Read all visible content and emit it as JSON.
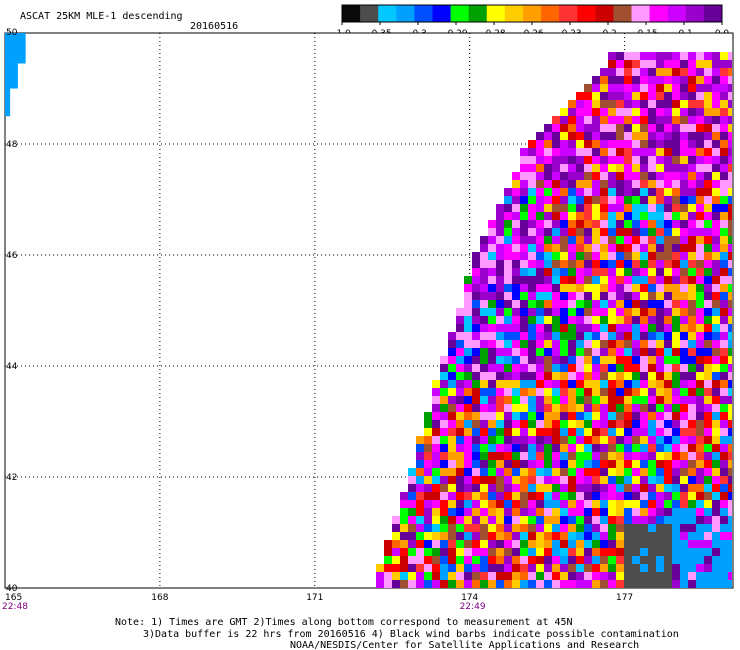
{
  "title": {
    "main": "ASCAT 25KM MLE-1 descending",
    "date": "20160516"
  },
  "colorbar": {
    "labels": [
      "-1.0",
      "-0.35",
      "-0.3",
      "-0.29",
      "-0.28",
      "-0.26",
      "-0.23",
      "-0.2",
      "-0.15",
      "-0.1",
      "0.0"
    ],
    "colors": [
      "#0a0a0a",
      "#4d4d4d",
      "#00c8ff",
      "#00a0ff",
      "#0050ff",
      "#0000ff",
      "#00ff00",
      "#00a000",
      "#ffff00",
      "#ffcc00",
      "#ffa000",
      "#ff6600",
      "#ff3333",
      "#ff0000",
      "#cc0000",
      "#a05030",
      "#ff99ff",
      "#ff00ff",
      "#cc00ff",
      "#9900cc",
      "#660099"
    ]
  },
  "notes": {
    "line1": "Note: 1) Times are GMT 2)Times along bottom correspond to measurement at 45N",
    "line2": "3)Data buffer is 22 hrs from 20160516 4) Black wind barbs indicate possible contamination",
    "line3": "NOAA/NESDIS/Center for Satellite Applications and Research"
  },
  "chart_data": {
    "type": "heatmap",
    "title": "ASCAT 25KM MLE-1 descending 20160516",
    "xlabel": "",
    "ylabel": "",
    "x_ticks": [
      165,
      168,
      171,
      174,
      177
    ],
    "y_ticks": [
      40,
      42,
      44,
      46,
      48,
      50
    ],
    "xlim": [
      165,
      179.1
    ],
    "ylim": [
      40,
      50
    ],
    "grid": true,
    "time_labels": [
      {
        "lon": 165,
        "text": "22:48"
      },
      {
        "lon": 174,
        "text": "22:49"
      }
    ],
    "swath_edges": [
      [
        40,
        172.2
      ],
      [
        42,
        172.9
      ],
      [
        44,
        173.5
      ],
      [
        46,
        174.2
      ],
      [
        48,
        175.2
      ],
      [
        49,
        176.3
      ],
      [
        50,
        177.2
      ]
    ],
    "value_scale": [
      -1.0,
      -0.35,
      -0.3,
      -0.29,
      -0.28,
      -0.26,
      -0.23,
      -0.2,
      -0.15,
      -0.1,
      0.0
    ],
    "colors": [
      "#0a0a0a",
      "#4d4d4d",
      "#00c8ff",
      "#00a0ff",
      "#0050ff",
      "#0000ff",
      "#00ff00",
      "#00a000",
      "#ffff00",
      "#ffcc00",
      "#ffa000",
      "#ff6600",
      "#ff3333",
      "#ff0000",
      "#cc0000",
      "#a05030",
      "#ff99ff",
      "#ff00ff",
      "#cc00ff",
      "#9900cc",
      "#660099"
    ],
    "left_edge_data": [
      {
        "lat_from": 49.45,
        "lat_to": 50,
        "lon_from": 165,
        "lon_to": 165.4,
        "color": "#00a0ff"
      },
      {
        "lat_from": 49.0,
        "lat_to": 49.45,
        "lon_from": 165,
        "lon_to": 165.25,
        "color": "#00a0ff"
      },
      {
        "lat_from": 48.5,
        "lat_to": 49.0,
        "lon_from": 165,
        "lon_to": 165.1,
        "color": "#00a0ff"
      }
    ]
  }
}
